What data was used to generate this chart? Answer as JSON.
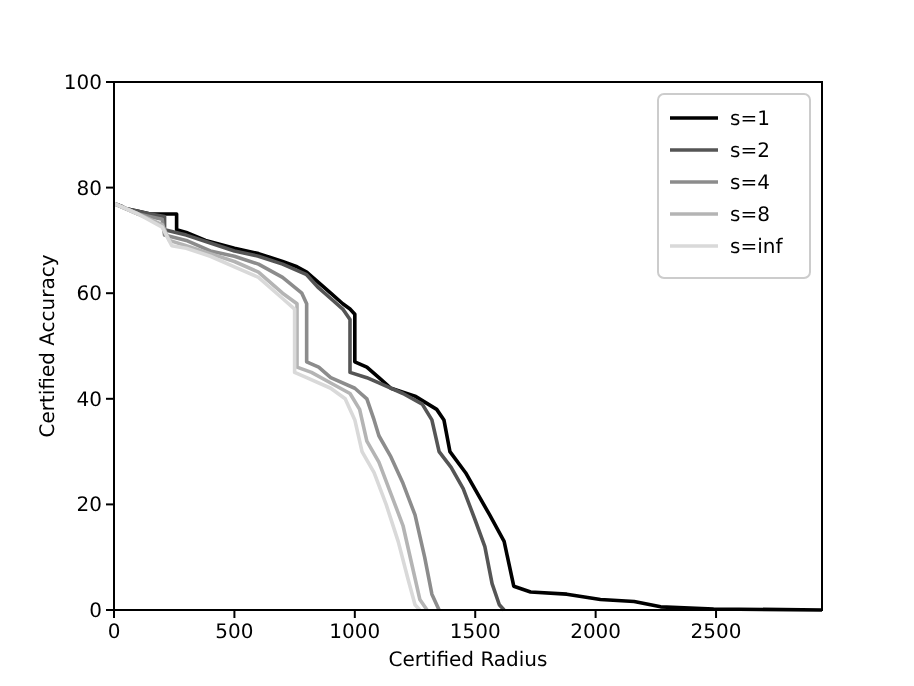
{
  "chart_data": {
    "type": "line",
    "xlabel": "Certified Radius",
    "ylabel": "Certified Accuracy",
    "xlim": [
      0,
      2940
    ],
    "xticks": [
      0,
      500,
      1000,
      1500,
      2000,
      2500
    ],
    "ylim": [
      0,
      100
    ],
    "yticks": [
      0,
      20,
      40,
      60,
      80,
      100
    ],
    "grid": false,
    "legend": "top right",
    "marker": "none",
    "line_style": "solid",
    "series": [
      {
        "name": "s=1",
        "color": "#000000",
        "x": [
          0,
          30,
          50,
          100,
          150,
          260,
          260,
          300,
          380,
          500,
          600,
          700,
          760,
          800,
          850,
          900,
          950,
          980,
          1000,
          1000,
          1050,
          1100,
          1150,
          1250,
          1340,
          1370,
          1395,
          1460,
          1560,
          1620,
          1660,
          1730,
          1880,
          2020,
          2160,
          2270,
          2490,
          2940
        ],
        "values": [
          77,
          76.5,
          76,
          75.5,
          75,
          75,
          72,
          71.5,
          70,
          68.5,
          67.5,
          66,
          65,
          64,
          62,
          60,
          58,
          57,
          56,
          47,
          46,
          44,
          42,
          40.5,
          38,
          36,
          30,
          26,
          18,
          13,
          4.5,
          3.4,
          3,
          2,
          1.6,
          0.6,
          0.2,
          0
        ]
      },
      {
        "name": "s=2",
        "color": "#555555",
        "x": [
          0,
          50,
          100,
          150,
          210,
          210,
          300,
          400,
          500,
          600,
          700,
          800,
          850,
          900,
          950,
          980,
          980,
          1050,
          1100,
          1200,
          1280,
          1320,
          1350,
          1400,
          1450,
          1500,
          1540,
          1570,
          1600,
          1620
        ],
        "values": [
          77,
          76,
          75.5,
          75,
          74.5,
          72,
          71,
          69.5,
          68,
          67,
          65.5,
          63.5,
          61,
          59,
          57,
          55,
          45,
          44,
          43,
          41,
          39,
          36,
          30,
          27,
          23,
          17,
          12,
          5,
          1,
          0
        ]
      },
      {
        "name": "s=4",
        "color": "#8c8c8c",
        "x": [
          0,
          100,
          200,
          210,
          300,
          400,
          500,
          600,
          700,
          780,
          800,
          800,
          850,
          900,
          1000,
          1050,
          1080,
          1100,
          1150,
          1200,
          1250,
          1290,
          1320,
          1350
        ],
        "values": [
          77,
          75,
          74,
          71,
          70,
          68,
          67,
          65.5,
          63,
          60,
          58,
          47,
          46,
          44,
          42,
          40,
          36,
          33,
          29,
          24,
          18,
          10,
          3,
          0
        ]
      },
      {
        "name": "s=8",
        "color": "#b4b4b4",
        "x": [
          0,
          100,
          200,
          230,
          300,
          400,
          500,
          600,
          700,
          760,
          760,
          820,
          900,
          980,
          1020,
          1050,
          1100,
          1150,
          1200,
          1240,
          1270,
          1300
        ],
        "values": [
          77,
          75,
          73,
          70,
          69,
          67.5,
          66,
          64,
          60,
          58,
          46,
          45,
          43,
          41,
          38,
          32,
          28,
          22,
          16,
          8,
          2,
          0
        ]
      },
      {
        "name": "s=inf",
        "color": "#d9d9d9",
        "x": [
          0,
          100,
          200,
          240,
          300,
          400,
          500,
          600,
          700,
          750,
          750,
          800,
          900,
          960,
          1000,
          1030,
          1080,
          1130,
          1180,
          1220,
          1250,
          1270
        ],
        "values": [
          77,
          75,
          72.5,
          69,
          68.5,
          67,
          65,
          63,
          59,
          57,
          45,
          44,
          42,
          40,
          36,
          30,
          26,
          20,
          13,
          6,
          1,
          0
        ]
      }
    ]
  }
}
